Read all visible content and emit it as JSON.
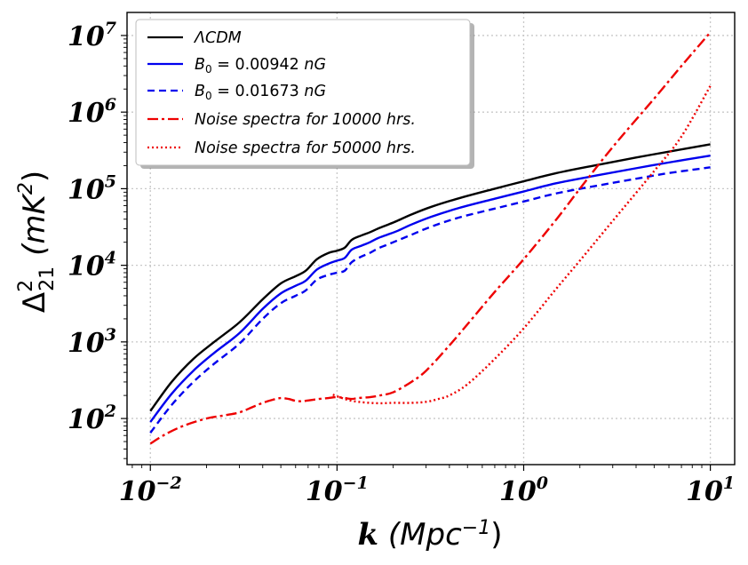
{
  "chart_data": {
    "type": "line",
    "xscale": "log",
    "yscale": "log",
    "xlim": [
      0.0075,
      13.5
    ],
    "ylim": [
      25,
      20000000
    ],
    "grid": true,
    "legend_position": "top-left",
    "x_label": {
      "main": "k",
      "unit_open": " (Mpc",
      "unit_exp": "−1",
      "unit_close": ")"
    },
    "y_label": {
      "main": "Δ",
      "sup": "2",
      "sub": "21",
      "unit_open": "(mK",
      "unit_exp": "2",
      "unit_close": ")"
    },
    "x_ticks": [
      {
        "value": 0.01,
        "base": "10",
        "exp": "−2"
      },
      {
        "value": 0.1,
        "base": "10",
        "exp": "−1"
      },
      {
        "value": 1,
        "base": "10",
        "exp": "0"
      },
      {
        "value": 10,
        "base": "10",
        "exp": "1"
      }
    ],
    "y_ticks": [
      {
        "value": 100,
        "base": "10",
        "exp": "2"
      },
      {
        "value": 1000,
        "base": "10",
        "exp": "3"
      },
      {
        "value": 10000,
        "base": "10",
        "exp": "4"
      },
      {
        "value": 100000,
        "base": "10",
        "exp": "5"
      },
      {
        "value": 1000000,
        "base": "10",
        "exp": "6"
      },
      {
        "value": 10000000,
        "base": "10",
        "exp": "7"
      }
    ],
    "series": [
      {
        "name": "ΛCDM",
        "color": "#000000",
        "dash": "solid",
        "x": [
          0.01,
          0.013,
          0.017,
          0.022,
          0.03,
          0.04,
          0.05,
          0.06,
          0.068,
          0.078,
          0.09,
          0.1,
          0.11,
          0.12,
          0.135,
          0.15,
          0.165,
          0.185,
          0.21,
          0.25,
          0.32,
          0.45,
          0.7,
          1,
          1.5,
          2.5,
          4,
          6,
          10
        ],
        "y": [
          125,
          300,
          600,
          1000,
          1800,
          3600,
          5800,
          7200,
          8500,
          12000,
          14500,
          15500,
          17000,
          21500,
          24500,
          27000,
          30000,
          33500,
          38000,
          46000,
          58000,
          75000,
          100000,
          125000,
          160000,
          205000,
          255000,
          305000,
          380000
        ]
      },
      {
        "name": "B₀ = 0.00942 nG",
        "label_parts": {
          "main": "B",
          "sub": "0",
          "value": " = 0.00942 ",
          "unit": "nG"
        },
        "color": "#0000ee",
        "dash": "solid",
        "x": [
          0.01,
          0.013,
          0.017,
          0.022,
          0.03,
          0.04,
          0.05,
          0.06,
          0.068,
          0.078,
          0.09,
          0.1,
          0.11,
          0.12,
          0.135,
          0.15,
          0.165,
          0.185,
          0.21,
          0.25,
          0.32,
          0.45,
          0.7,
          1,
          1.5,
          2.5,
          4,
          6,
          10
        ],
        "y": [
          90,
          210,
          420,
          720,
          1300,
          2700,
          4300,
          5400,
          6300,
          8800,
          10500,
          11500,
          12500,
          16000,
          18000,
          20000,
          22500,
          25000,
          28000,
          34000,
          43000,
          56000,
          74000,
          92000,
          118000,
          150000,
          185000,
          220000,
          270000
        ]
      },
      {
        "name": "B₀ = 0.01673 nG",
        "label_parts": {
          "main": "B",
          "sub": "0",
          "value": " = 0.01673 ",
          "unit": "nG"
        },
        "color": "#0000ee",
        "dash": "dashed",
        "x": [
          0.01,
          0.013,
          0.017,
          0.022,
          0.03,
          0.04,
          0.05,
          0.06,
          0.068,
          0.078,
          0.09,
          0.1,
          0.11,
          0.12,
          0.135,
          0.15,
          0.165,
          0.185,
          0.21,
          0.25,
          0.32,
          0.45,
          0.7,
          1,
          1.5,
          2.5,
          4,
          6,
          10
        ],
        "y": [
          65,
          150,
          300,
          520,
          950,
          2000,
          3200,
          4000,
          4700,
          6500,
          7500,
          8000,
          8500,
          11000,
          13000,
          14500,
          16500,
          18500,
          21000,
          25000,
          32000,
          42000,
          55000,
          68000,
          87000,
          110000,
          135000,
          160000,
          190000
        ]
      },
      {
        "name": "Noise spectra for 10000 hrs.",
        "color": "#ee0000",
        "dash": "dashdot",
        "x": [
          0.01,
          0.012,
          0.015,
          0.02,
          0.025,
          0.03,
          0.035,
          0.04,
          0.045,
          0.05,
          0.055,
          0.06,
          0.065,
          0.07,
          0.08,
          0.09,
          0.1,
          0.11,
          0.12,
          0.13,
          0.15,
          0.17,
          0.2,
          0.25,
          0.3,
          0.4,
          0.5,
          0.7,
          1,
          1.5,
          2,
          3,
          5,
          7,
          10
        ],
        "y": [
          47,
          62,
          80,
          100,
          110,
          120,
          140,
          160,
          175,
          185,
          180,
          170,
          168,
          172,
          180,
          185,
          190,
          185,
          180,
          185,
          190,
          200,
          220,
          300,
          420,
          900,
          1700,
          4500,
          12000,
          40000,
          100000,
          350000,
          1500000,
          4000000,
          11000000
        ]
      },
      {
        "name": "Noise spectra for 50000 hrs.",
        "color": "#ee0000",
        "dash": "dotted",
        "x": [
          0.095,
          0.1,
          0.11,
          0.12,
          0.14,
          0.17,
          0.2,
          0.25,
          0.3,
          0.35,
          0.4,
          0.5,
          0.7,
          1,
          1.5,
          2,
          3,
          5,
          7,
          10
        ],
        "y": [
          205,
          195,
          180,
          170,
          162,
          158,
          160,
          160,
          165,
          180,
          200,
          280,
          600,
          1500,
          5000,
          11500,
          38000,
          170000,
          480000,
          2200000
        ]
      }
    ]
  }
}
